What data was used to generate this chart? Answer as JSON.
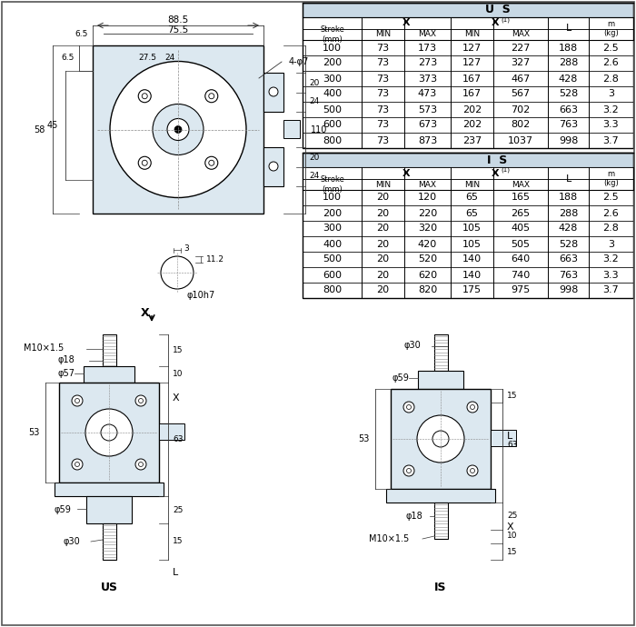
{
  "bg_color": "#ffffff",
  "us_table": {
    "header_title": "U S",
    "rows": [
      [
        100,
        73,
        173,
        127,
        227,
        188,
        2.5
      ],
      [
        200,
        73,
        273,
        127,
        327,
        288,
        2.6
      ],
      [
        300,
        73,
        373,
        167,
        467,
        428,
        2.8
      ],
      [
        400,
        73,
        473,
        167,
        567,
        528,
        3.0
      ],
      [
        500,
        73,
        573,
        202,
        702,
        663,
        3.2
      ],
      [
        600,
        73,
        673,
        202,
        802,
        763,
        3.3
      ],
      [
        800,
        73,
        873,
        237,
        1037,
        998,
        3.7
      ]
    ]
  },
  "is_table": {
    "header_title": "I S",
    "rows": [
      [
        100,
        20,
        120,
        65,
        165,
        188,
        2.5
      ],
      [
        200,
        20,
        220,
        65,
        265,
        288,
        2.6
      ],
      [
        300,
        20,
        320,
        105,
        405,
        428,
        2.8
      ],
      [
        400,
        20,
        420,
        105,
        505,
        528,
        3.0
      ],
      [
        500,
        20,
        520,
        140,
        640,
        663,
        3.2
      ],
      [
        600,
        20,
        620,
        140,
        740,
        763,
        3.3
      ],
      [
        800,
        20,
        820,
        175,
        975,
        998,
        3.7
      ]
    ]
  },
  "line_color": "#000000",
  "light_fill": "#dce8f0",
  "header_fill": "#c8d8e4"
}
